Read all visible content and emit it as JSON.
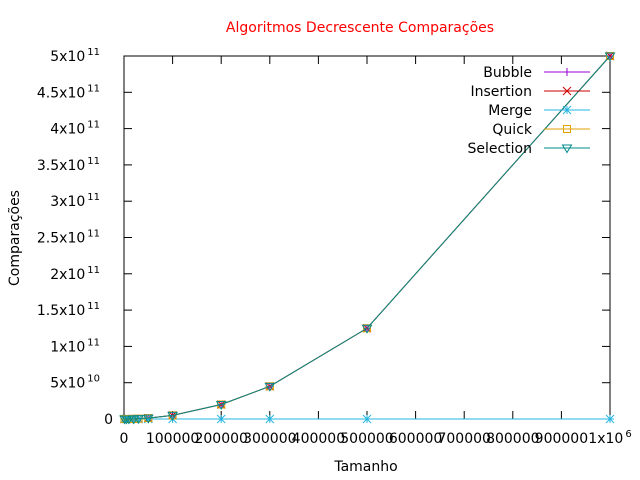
{
  "chart_data": {
    "type": "line",
    "title": "Algoritmos Decrescente Comparações",
    "xlabel": "Tamanho",
    "ylabel": "Comparações",
    "xlim": [
      0,
      1000000
    ],
    "ylim": [
      0,
      500000000000
    ],
    "grid": false,
    "legend_position": "top-right",
    "x_ticks": [
      {
        "value": 0,
        "label": "0"
      },
      {
        "value": 100000,
        "label": "100000"
      },
      {
        "value": 200000,
        "label": "200000"
      },
      {
        "value": 300000,
        "label": "300000"
      },
      {
        "value": 400000,
        "label": "400000"
      },
      {
        "value": 500000,
        "label": "500000"
      },
      {
        "value": 600000,
        "label": "600000"
      },
      {
        "value": 700000,
        "label": "700000"
      },
      {
        "value": 800000,
        "label": "800000"
      },
      {
        "value": 900000,
        "label": "900000"
      },
      {
        "value": 1000000,
        "label": "1x10",
        "sup": "6"
      }
    ],
    "y_ticks": [
      {
        "value": 0,
        "label": "0"
      },
      {
        "value": 50000000000,
        "label": "5x10",
        "sup": "10"
      },
      {
        "value": 100000000000,
        "label": "1x10",
        "sup": "11"
      },
      {
        "value": 150000000000,
        "label": "1.5x10",
        "sup": "11"
      },
      {
        "value": 200000000000,
        "label": "2x10",
        "sup": "11"
      },
      {
        "value": 250000000000,
        "label": "2.5x10",
        "sup": "11"
      },
      {
        "value": 300000000000,
        "label": "3x10",
        "sup": "11"
      },
      {
        "value": 350000000000,
        "label": "3.5x10",
        "sup": "11"
      },
      {
        "value": 400000000000,
        "label": "4x10",
        "sup": "11"
      },
      {
        "value": 450000000000,
        "label": "4.5x10",
        "sup": "11"
      },
      {
        "value": 500000000000,
        "label": "5x10",
        "sup": "11"
      }
    ],
    "x": [
      1000,
      5000,
      10000,
      20000,
      30000,
      50000,
      100000,
      200000,
      300000,
      500000,
      1000000
    ],
    "series": [
      {
        "name": "Bubble",
        "color": "#9400d3",
        "marker": "plus",
        "values": [
          500000,
          12500000,
          50000000,
          200000000,
          450000000,
          1250000000,
          5000000000,
          20000000000,
          45000000000,
          125000000000,
          500000000000
        ]
      },
      {
        "name": "Insertion",
        "color": "#cc0000",
        "marker": "cross",
        "values": [
          500000,
          12500000,
          50000000,
          200000000,
          450000000,
          1250000000,
          5000000000,
          20000000000,
          45000000000,
          125000000000,
          500000000000
        ]
      },
      {
        "name": "Merge",
        "color": "#26b5e0",
        "marker": "star",
        "values": [
          5000,
          32000,
          69000,
          148000,
          227000,
          392000,
          834000,
          1768000,
          2636000,
          4650000,
          9800000
        ]
      },
      {
        "name": "Quick",
        "color": "#e0a000",
        "marker": "square",
        "values": [
          500000,
          12500000,
          50000000,
          200000000,
          450000000,
          1250000000,
          5000000000,
          20000000000,
          45000000000,
          125000000000,
          500000000000
        ]
      },
      {
        "name": "Selection",
        "color": "#008b8b",
        "marker": "triangle-down",
        "values": [
          500000,
          12500000,
          50000000,
          200000000,
          450000000,
          1250000000,
          5000000000,
          20000000000,
          45000000000,
          125000000000,
          500000000000
        ]
      }
    ]
  }
}
